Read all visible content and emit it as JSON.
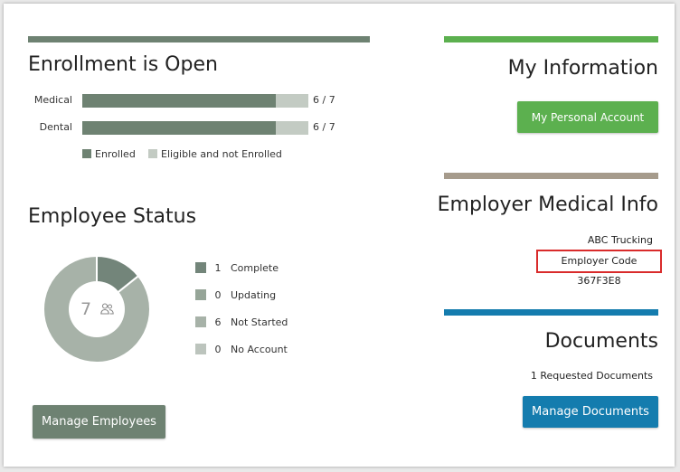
{
  "colors": {
    "enrolled": "#6e8272",
    "eligible": "#c3cbc3",
    "complete": "#73857a",
    "updating": "#96a598",
    "not_started": "#a7b2a8",
    "no_account": "#bcc4bd",
    "my_info_accent": "#5cb04f",
    "medical_accent": "#a69b8c",
    "documents_accent": "#147cae",
    "highlight": "#d92b2b"
  },
  "enrollment": {
    "title": "Enrollment is Open",
    "rows": [
      {
        "label": "Medical",
        "enrolled": 6,
        "total": 7,
        "count_text": "6 / 7"
      },
      {
        "label": "Dental",
        "enrolled": 6,
        "total": 7,
        "count_text": "6 / 7"
      }
    ],
    "legend": {
      "enrolled": "Enrolled",
      "eligible": "Eligible and not Enrolled"
    }
  },
  "employee_status": {
    "title": "Employee Status",
    "total": "7",
    "center_icon": "users-icon",
    "items": [
      {
        "count": "1",
        "label": "Complete",
        "value": 1
      },
      {
        "count": "0",
        "label": "Updating",
        "value": 0
      },
      {
        "count": "6",
        "label": "Not Started",
        "value": 6
      },
      {
        "count": "0",
        "label": "No Account",
        "value": 0
      }
    ],
    "manage_button": "Manage Employees"
  },
  "my_information": {
    "title": "My Information",
    "button": "My Personal Account"
  },
  "employer_medical": {
    "title": "Employer Medical Info",
    "company": "ABC Trucking",
    "code_text": "Employer Code 367F3E8"
  },
  "documents": {
    "title": "Documents",
    "requested": "1 Requested Documents",
    "button": "Manage Documents"
  }
}
